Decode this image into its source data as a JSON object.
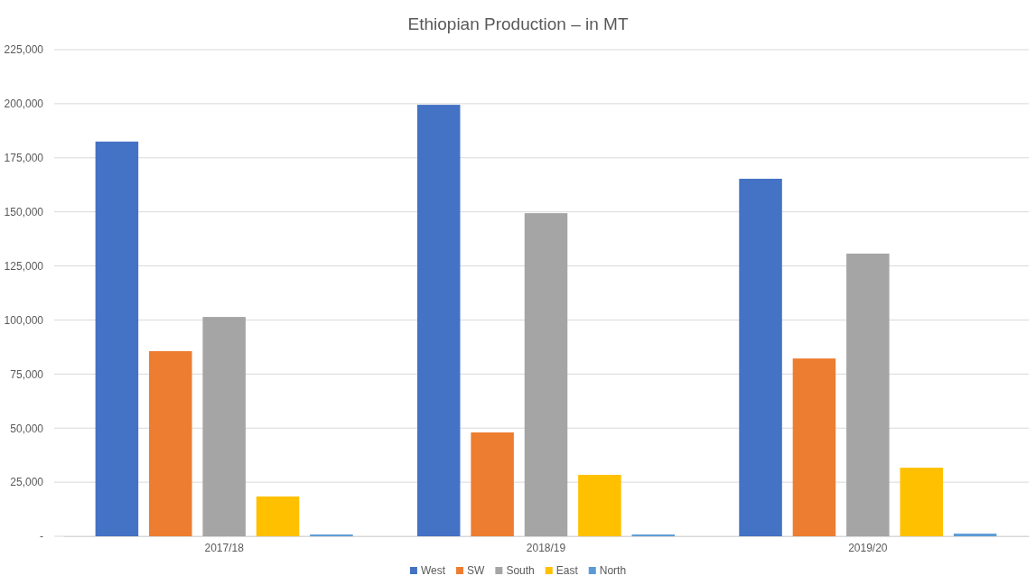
{
  "chart_data": {
    "type": "bar",
    "title": "Ethiopian Production – in MT",
    "categories": [
      "2017/18",
      "2018/19",
      "2019/20"
    ],
    "series": [
      {
        "name": "West",
        "color": "#4472c4",
        "values": [
          182500,
          199500,
          165300
        ]
      },
      {
        "name": "SW",
        "color": "#ed7d31",
        "values": [
          85600,
          48000,
          82200
        ]
      },
      {
        "name": "South",
        "color": "#a5a5a5",
        "values": [
          101400,
          149400,
          130700
        ]
      },
      {
        "name": "East",
        "color": "#ffc000",
        "values": [
          18400,
          28400,
          31700
        ]
      },
      {
        "name": "North",
        "color": "#5b9bd5",
        "values": [
          800,
          800,
          1200
        ]
      }
    ],
    "ylim": [
      0,
      225000
    ],
    "yticks": [
      {
        "value": 0,
        "label": "-"
      },
      {
        "value": 25000,
        "label": "25,000"
      },
      {
        "value": 50000,
        "label": "50,000"
      },
      {
        "value": 75000,
        "label": "75,000"
      },
      {
        "value": 100000,
        "label": "100,000"
      },
      {
        "value": 125000,
        "label": "125,000"
      },
      {
        "value": 150000,
        "label": "150,000"
      },
      {
        "value": 175000,
        "label": "175,000"
      },
      {
        "value": 200000,
        "label": "200,000"
      },
      {
        "value": 225000,
        "label": "225,000"
      }
    ],
    "grid": "y",
    "legend": "bottom"
  }
}
